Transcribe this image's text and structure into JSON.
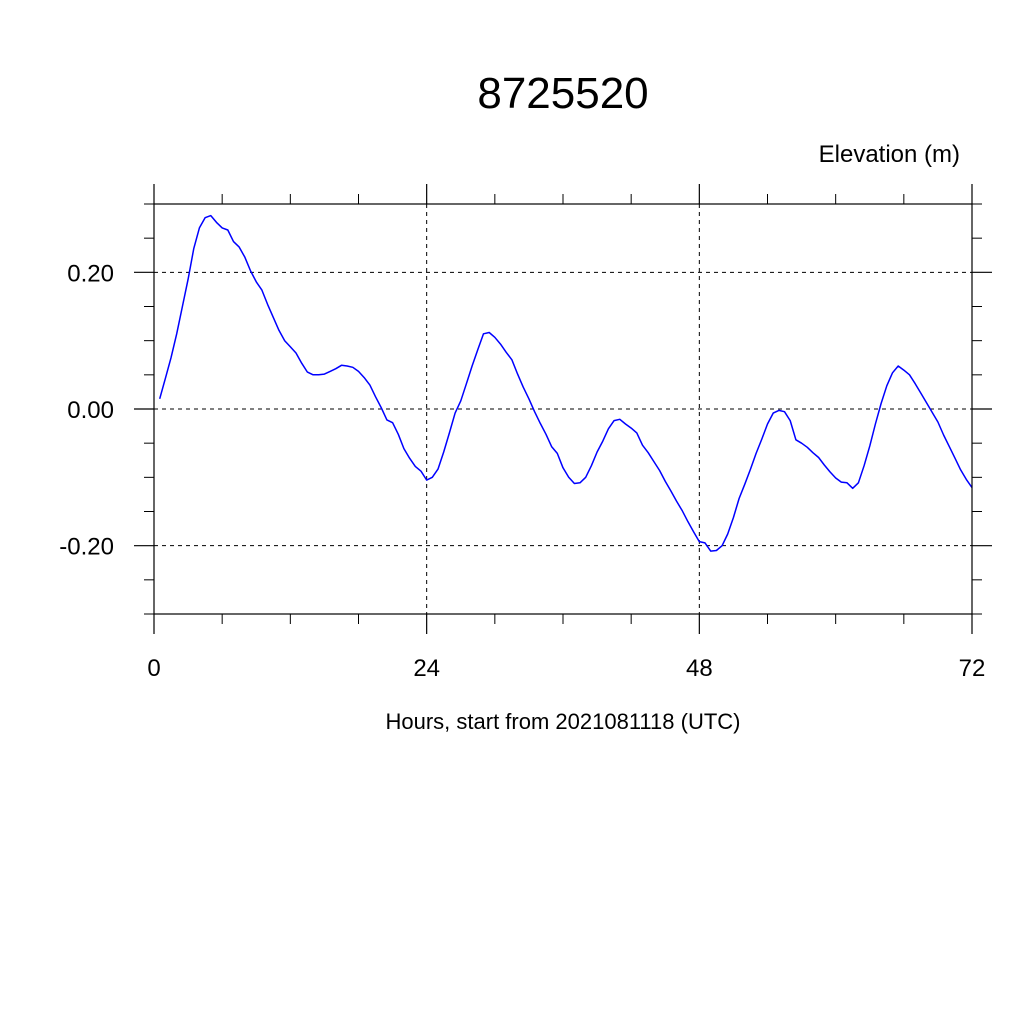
{
  "chart_data": {
    "type": "line",
    "title": "8725520",
    "ylabel": "Elevation (m)",
    "xlabel": "Hours, start from 2021081118 (UTC)",
    "xlim": [
      0,
      72
    ],
    "ylim": [
      -0.3,
      0.3
    ],
    "x_ticks": [
      0,
      24,
      48,
      72
    ],
    "x_tick_labels": [
      "0",
      "24",
      "48",
      "72"
    ],
    "y_ticks": [
      -0.2,
      0.0,
      0.2
    ],
    "y_tick_labels": [
      "-0.20",
      "0.00",
      "0.20"
    ],
    "grid": "dashed at major ticks",
    "series": [
      {
        "color": "#0000ff",
        "x": [
          0.5,
          1.0,
          1.5,
          2.0,
          2.5,
          3.0,
          3.5,
          4.0,
          4.5,
          5.0,
          5.5,
          6.0,
          6.5,
          7.0,
          7.5,
          8.0,
          8.5,
          9.0,
          9.5,
          10.0,
          10.5,
          11.0,
          11.5,
          12.0,
          12.5,
          13.0,
          13.5,
          14.0,
          14.5,
          15.0,
          15.5,
          16.0,
          16.5,
          17.0,
          17.5,
          18.0,
          18.5,
          19.0,
          19.5,
          20.0,
          20.5,
          21.0,
          21.5,
          22.0,
          22.5,
          23.0,
          23.5,
          24.0,
          24.5,
          25.0,
          25.5,
          26.0,
          26.5,
          27.0,
          27.5,
          28.0,
          28.5,
          29.0,
          29.5,
          30.0,
          30.5,
          31.0,
          31.5,
          32.0,
          32.5,
          33.0,
          33.5,
          34.0,
          34.5,
          35.0,
          35.5,
          36.0,
          36.5,
          37.0,
          37.5,
          38.0,
          38.5,
          39.0,
          39.5,
          40.0,
          40.5,
          41.0,
          41.5,
          42.0,
          42.5,
          43.0,
          43.5,
          44.0,
          44.5,
          45.0,
          45.5,
          46.0,
          46.5,
          47.0,
          47.5,
          48.0,
          48.5,
          49.0,
          49.5,
          50.0,
          50.5,
          51.0,
          51.5,
          52.0,
          52.5,
          53.0,
          53.5,
          54.0,
          54.5,
          55.0,
          55.5,
          56.0,
          56.5,
          57.0,
          57.5,
          58.0,
          58.5,
          59.0,
          59.5,
          60.0,
          60.5,
          61.0,
          61.5,
          62.0,
          62.5,
          63.0,
          63.5,
          64.0,
          64.5,
          65.0,
          65.5,
          66.0,
          66.5,
          67.0,
          67.5,
          68.0,
          68.5,
          69.0,
          69.5,
          70.0,
          70.5,
          71.0,
          71.5,
          72.0
        ],
        "values": [
          0.015,
          0.045,
          0.075,
          0.11,
          0.15,
          0.19,
          0.235,
          0.265,
          0.28,
          0.283,
          0.273,
          0.265,
          0.262,
          0.245,
          0.237,
          0.222,
          0.202,
          0.186,
          0.174,
          0.153,
          0.134,
          0.115,
          0.1,
          0.091,
          0.082,
          0.067,
          0.054,
          0.05,
          0.05,
          0.051,
          0.055,
          0.059,
          0.064,
          0.063,
          0.061,
          0.055,
          0.046,
          0.035,
          0.018,
          0.002,
          -0.016,
          -0.02,
          -0.037,
          -0.058,
          -0.072,
          -0.084,
          -0.091,
          -0.104,
          -0.1,
          -0.088,
          -0.063,
          -0.035,
          -0.006,
          0.012,
          0.037,
          0.063,
          0.087,
          0.11,
          0.112,
          0.105,
          0.095,
          0.083,
          0.072,
          0.051,
          0.032,
          0.015,
          -0.004,
          -0.021,
          -0.037,
          -0.055,
          -0.065,
          -0.086,
          -0.1,
          -0.109,
          -0.108,
          -0.1,
          -0.083,
          -0.063,
          -0.047,
          -0.029,
          -0.017,
          -0.015,
          -0.022,
          -0.028,
          -0.035,
          -0.053,
          -0.064,
          -0.077,
          -0.09,
          -0.106,
          -0.12,
          -0.135,
          -0.149,
          -0.165,
          -0.18,
          -0.194,
          -0.196,
          -0.208,
          -0.207,
          -0.2,
          -0.183,
          -0.159,
          -0.131,
          -0.11,
          -0.088,
          -0.065,
          -0.044,
          -0.022,
          -0.006,
          -0.002,
          -0.004,
          -0.017,
          -0.045,
          -0.05,
          -0.056,
          -0.064,
          -0.071,
          -0.082,
          -0.092,
          -0.101,
          -0.107,
          -0.108,
          -0.116,
          -0.108,
          -0.083,
          -0.054,
          -0.022,
          0.008,
          0.034,
          0.053,
          0.063,
          0.057,
          0.05,
          0.037,
          0.023,
          0.009,
          -0.005,
          -0.019,
          -0.038,
          -0.055,
          -0.072,
          -0.089,
          -0.103,
          -0.115
        ]
      }
    ]
  }
}
